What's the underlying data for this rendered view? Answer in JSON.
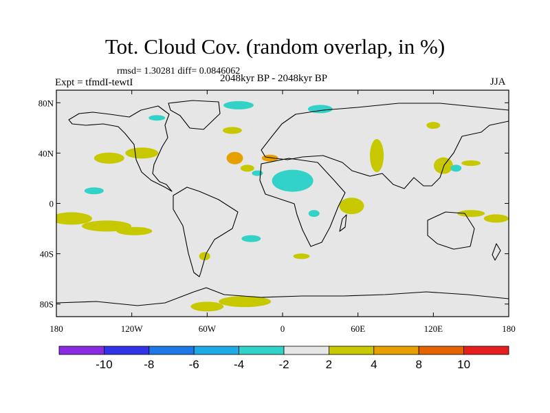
{
  "chart_data": {
    "type": "heatmap",
    "title": "Tot. Cloud Cov. (random overlap, in %)",
    "stats": "rmsd= 1.30281 diff= 0.0846062",
    "experiment": "Expt = tfmdI-tewtI",
    "period": "2048kyr BP - 2048kyr BP",
    "season": "JJA",
    "x_axis": {
      "range": [
        -180,
        180
      ],
      "ticks": [
        {
          "value": -180,
          "label": "180"
        },
        {
          "value": -120,
          "label": "120W"
        },
        {
          "value": -60,
          "label": "60W"
        },
        {
          "value": 0,
          "label": "0"
        },
        {
          "value": 60,
          "label": "60E"
        },
        {
          "value": 120,
          "label": "120E"
        },
        {
          "value": 180,
          "label": "180"
        }
      ]
    },
    "y_axis": {
      "range": [
        -90,
        90
      ],
      "ticks": [
        {
          "value": 80,
          "label": "80N"
        },
        {
          "value": 40,
          "label": "40N"
        },
        {
          "value": 0,
          "label": "0"
        },
        {
          "value": -40,
          "label": "40S"
        },
        {
          "value": -80,
          "label": "80S"
        }
      ]
    },
    "colorbar": {
      "colors": [
        "#8a2be2",
        "#3232e6",
        "#1e78e6",
        "#1eaae6",
        "#32d2c8",
        "#e6e6e6",
        "#c8c800",
        "#e6a000",
        "#e66400",
        "#e61e1e"
      ],
      "boundary_labels": [
        "-10",
        "-8",
        "-6",
        "-4",
        "-2",
        "2",
        "4",
        "8",
        "10"
      ]
    },
    "anomalies": [
      {
        "lon": -138,
        "lat": 36,
        "value": 3
      },
      {
        "lon": -112,
        "lat": 40,
        "value": 3
      },
      {
        "lon": -168,
        "lat": -12,
        "value": 3
      },
      {
        "lon": -140,
        "lat": -18,
        "value": 3
      },
      {
        "lon": -118,
        "lat": -22,
        "value": 3
      },
      {
        "lon": -38,
        "lat": 36,
        "value": 5
      },
      {
        "lon": -28,
        "lat": 28,
        "value": 3
      },
      {
        "lon": -40,
        "lat": 58,
        "value": 3
      },
      {
        "lon": -10,
        "lat": 36,
        "value": 5
      },
      {
        "lon": 8,
        "lat": 18,
        "value": -3.5
      },
      {
        "lon": -20,
        "lat": 24,
        "value": -3
      },
      {
        "lon": -25,
        "lat": -28,
        "value": -3
      },
      {
        "lon": -62,
        "lat": -42,
        "value": 3
      },
      {
        "lon": -60,
        "lat": -82,
        "value": 3
      },
      {
        "lon": -30,
        "lat": -78,
        "value": 3
      },
      {
        "lon": 15,
        "lat": -42,
        "value": 3
      },
      {
        "lon": 55,
        "lat": -2,
        "value": 3
      },
      {
        "lon": 25,
        "lat": -8,
        "value": -3
      },
      {
        "lon": 75,
        "lat": 38,
        "value": 3
      },
      {
        "lon": 128,
        "lat": 30,
        "value": 3
      },
      {
        "lon": 138,
        "lat": 28,
        "value": -3
      },
      {
        "lon": 150,
        "lat": 32,
        "value": 3
      },
      {
        "lon": 120,
        "lat": 62,
        "value": 3
      },
      {
        "lon": 150,
        "lat": -8,
        "value": 3
      },
      {
        "lon": 170,
        "lat": -12,
        "value": 3
      },
      {
        "lon": -150,
        "lat": 10,
        "value": -3
      },
      {
        "lon": -35,
        "lat": 78,
        "value": -3
      },
      {
        "lon": 30,
        "lat": 75,
        "value": -3
      },
      {
        "lon": -100,
        "lat": 68,
        "value": -3
      }
    ]
  }
}
